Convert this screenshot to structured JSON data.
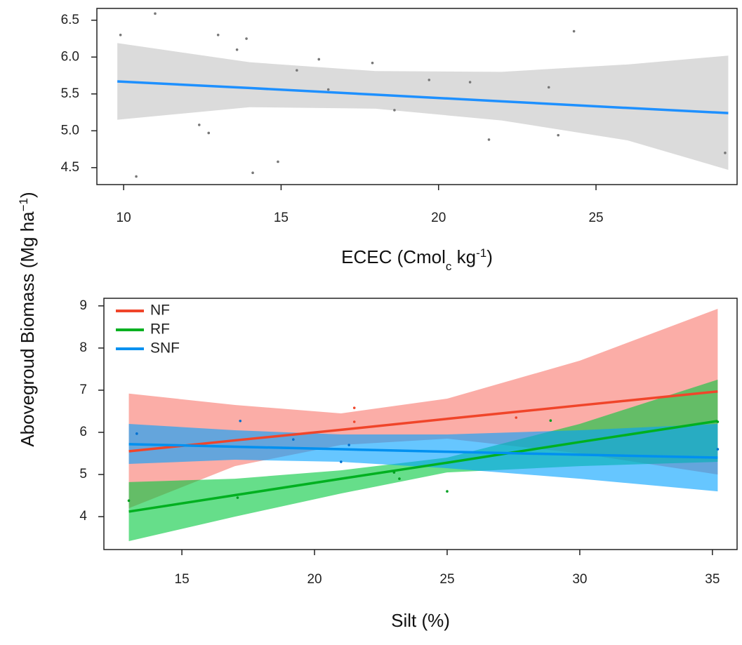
{
  "chart_data": [
    {
      "type": "regression",
      "ylabel": [
        {
          "text": "Abovegroud Biomass (Mg ha"
        },
        {
          "text": "−1",
          "script": "sup"
        },
        {
          "text": ")"
        }
      ],
      "xlabel": [
        {
          "text": "ECEC (Cmol"
        },
        {
          "text": "c",
          "script": "sub"
        },
        {
          "text": " kg"
        },
        {
          "text": "-1",
          "script": "sup"
        },
        {
          "text": ")"
        }
      ],
      "xlim": [
        9.15,
        29.48
      ],
      "ylim": [
        4.27,
        6.66
      ],
      "xticks": [
        10,
        15,
        20,
        25
      ],
      "yticks": [
        4.5,
        {
          "value": 5,
          "label": "5.0"
        },
        5.5,
        {
          "value": 6,
          "label": "6.0"
        },
        6.5
      ],
      "series": [
        {
          "color": "#1e90ff",
          "band_color": "rgba(200,200,200,0.65)",
          "point_color": "#777777",
          "x": [
            9.8,
            14,
            18,
            22,
            26,
            29.2
          ],
          "values": [
            5.67,
            5.58,
            5.49,
            5.4,
            5.31,
            5.24
          ],
          "lower": [
            5.15,
            5.32,
            5.3,
            5.14,
            4.87,
            4.47
          ],
          "upper": [
            6.19,
            5.93,
            5.81,
            5.8,
            5.9,
            6.02
          ],
          "points": {
            "x": [
              9.9,
              11.0,
              10.4,
              12.4,
              12.7,
              13.0,
              13.6,
              13.9,
              14.1,
              14.9,
              15.5,
              16.2,
              16.5,
              17.9,
              19.7,
              18.6,
              21.0,
              21.6,
              23.5,
              23.8,
              24.3,
              29.1
            ],
            "y": [
              6.3,
              6.59,
              4.38,
              5.08,
              4.97,
              6.3,
              6.1,
              6.25,
              4.43,
              4.58,
              5.82,
              5.97,
              5.56,
              5.92,
              5.69,
              5.28,
              5.66,
              4.88,
              5.59,
              4.94,
              6.35,
              4.7
            ]
          }
        }
      ]
    },
    {
      "type": "regression",
      "xlabel": [
        {
          "text": "Silt (%)"
        }
      ],
      "xlim": [
        12.06,
        35.93
      ],
      "ylim": [
        3.22,
        9.18
      ],
      "xticks": [
        15,
        20,
        25,
        30,
        35
      ],
      "yticks": [
        4,
        5,
        6,
        7,
        8,
        9
      ],
      "legend": "top-left",
      "series": [
        {
          "name": "NF",
          "color": "#f0452a",
          "band_color": "rgba(248,118,109,0.6)",
          "point_color": "#f0452a",
          "x": [
            13,
            17,
            21,
            25,
            30,
            35.2
          ],
          "values": [
            5.55,
            5.81,
            6.06,
            6.32,
            6.64,
            6.97
          ],
          "lower": [
            4.2,
            5.2,
            5.7,
            5.85,
            5.5,
            5.0
          ],
          "upper": [
            6.92,
            6.65,
            6.45,
            6.8,
            7.7,
            8.93
          ],
          "points": {
            "x": [
              21.5,
              21.5,
              27.6
            ],
            "y": [
              6.58,
              6.25,
              6.35
            ]
          }
        },
        {
          "name": "RF",
          "color": "#00b020",
          "band_color": "rgba(0,200,60,0.6)",
          "point_color": "#00a020",
          "x": [
            13,
            17,
            21,
            25,
            30,
            35.2
          ],
          "values": [
            4.12,
            4.51,
            4.9,
            5.28,
            5.77,
            6.27
          ],
          "lower": [
            3.42,
            4.0,
            4.55,
            5.05,
            5.2,
            5.3
          ],
          "upper": [
            4.82,
            4.9,
            5.1,
            5.4,
            6.2,
            7.25
          ],
          "points": {
            "x": [
              13,
              17.1,
              23,
              23.2,
              25,
              28.9,
              35.2
            ],
            "y": [
              4.38,
              4.45,
              5.05,
              4.9,
              4.6,
              6.28,
              6.25
            ]
          }
        },
        {
          "name": "SNF",
          "color": "#0090f0",
          "band_color": "rgba(0,160,255,0.6)",
          "point_color": "#0070d0",
          "x": [
            13,
            17,
            21,
            25,
            30,
            35.2
          ],
          "values": [
            5.72,
            5.66,
            5.6,
            5.54,
            5.47,
            5.4
          ],
          "lower": [
            5.25,
            5.35,
            5.3,
            5.15,
            4.9,
            4.6
          ],
          "upper": [
            6.2,
            6.05,
            5.95,
            5.95,
            6.05,
            6.2
          ],
          "points": {
            "x": [
              13.3,
              17.2,
              19.2,
              21,
              21.3,
              35.2
            ],
            "y": [
              5.97,
              6.27,
              5.83,
              5.3,
              5.7,
              5.6
            ]
          }
        }
      ]
    }
  ]
}
